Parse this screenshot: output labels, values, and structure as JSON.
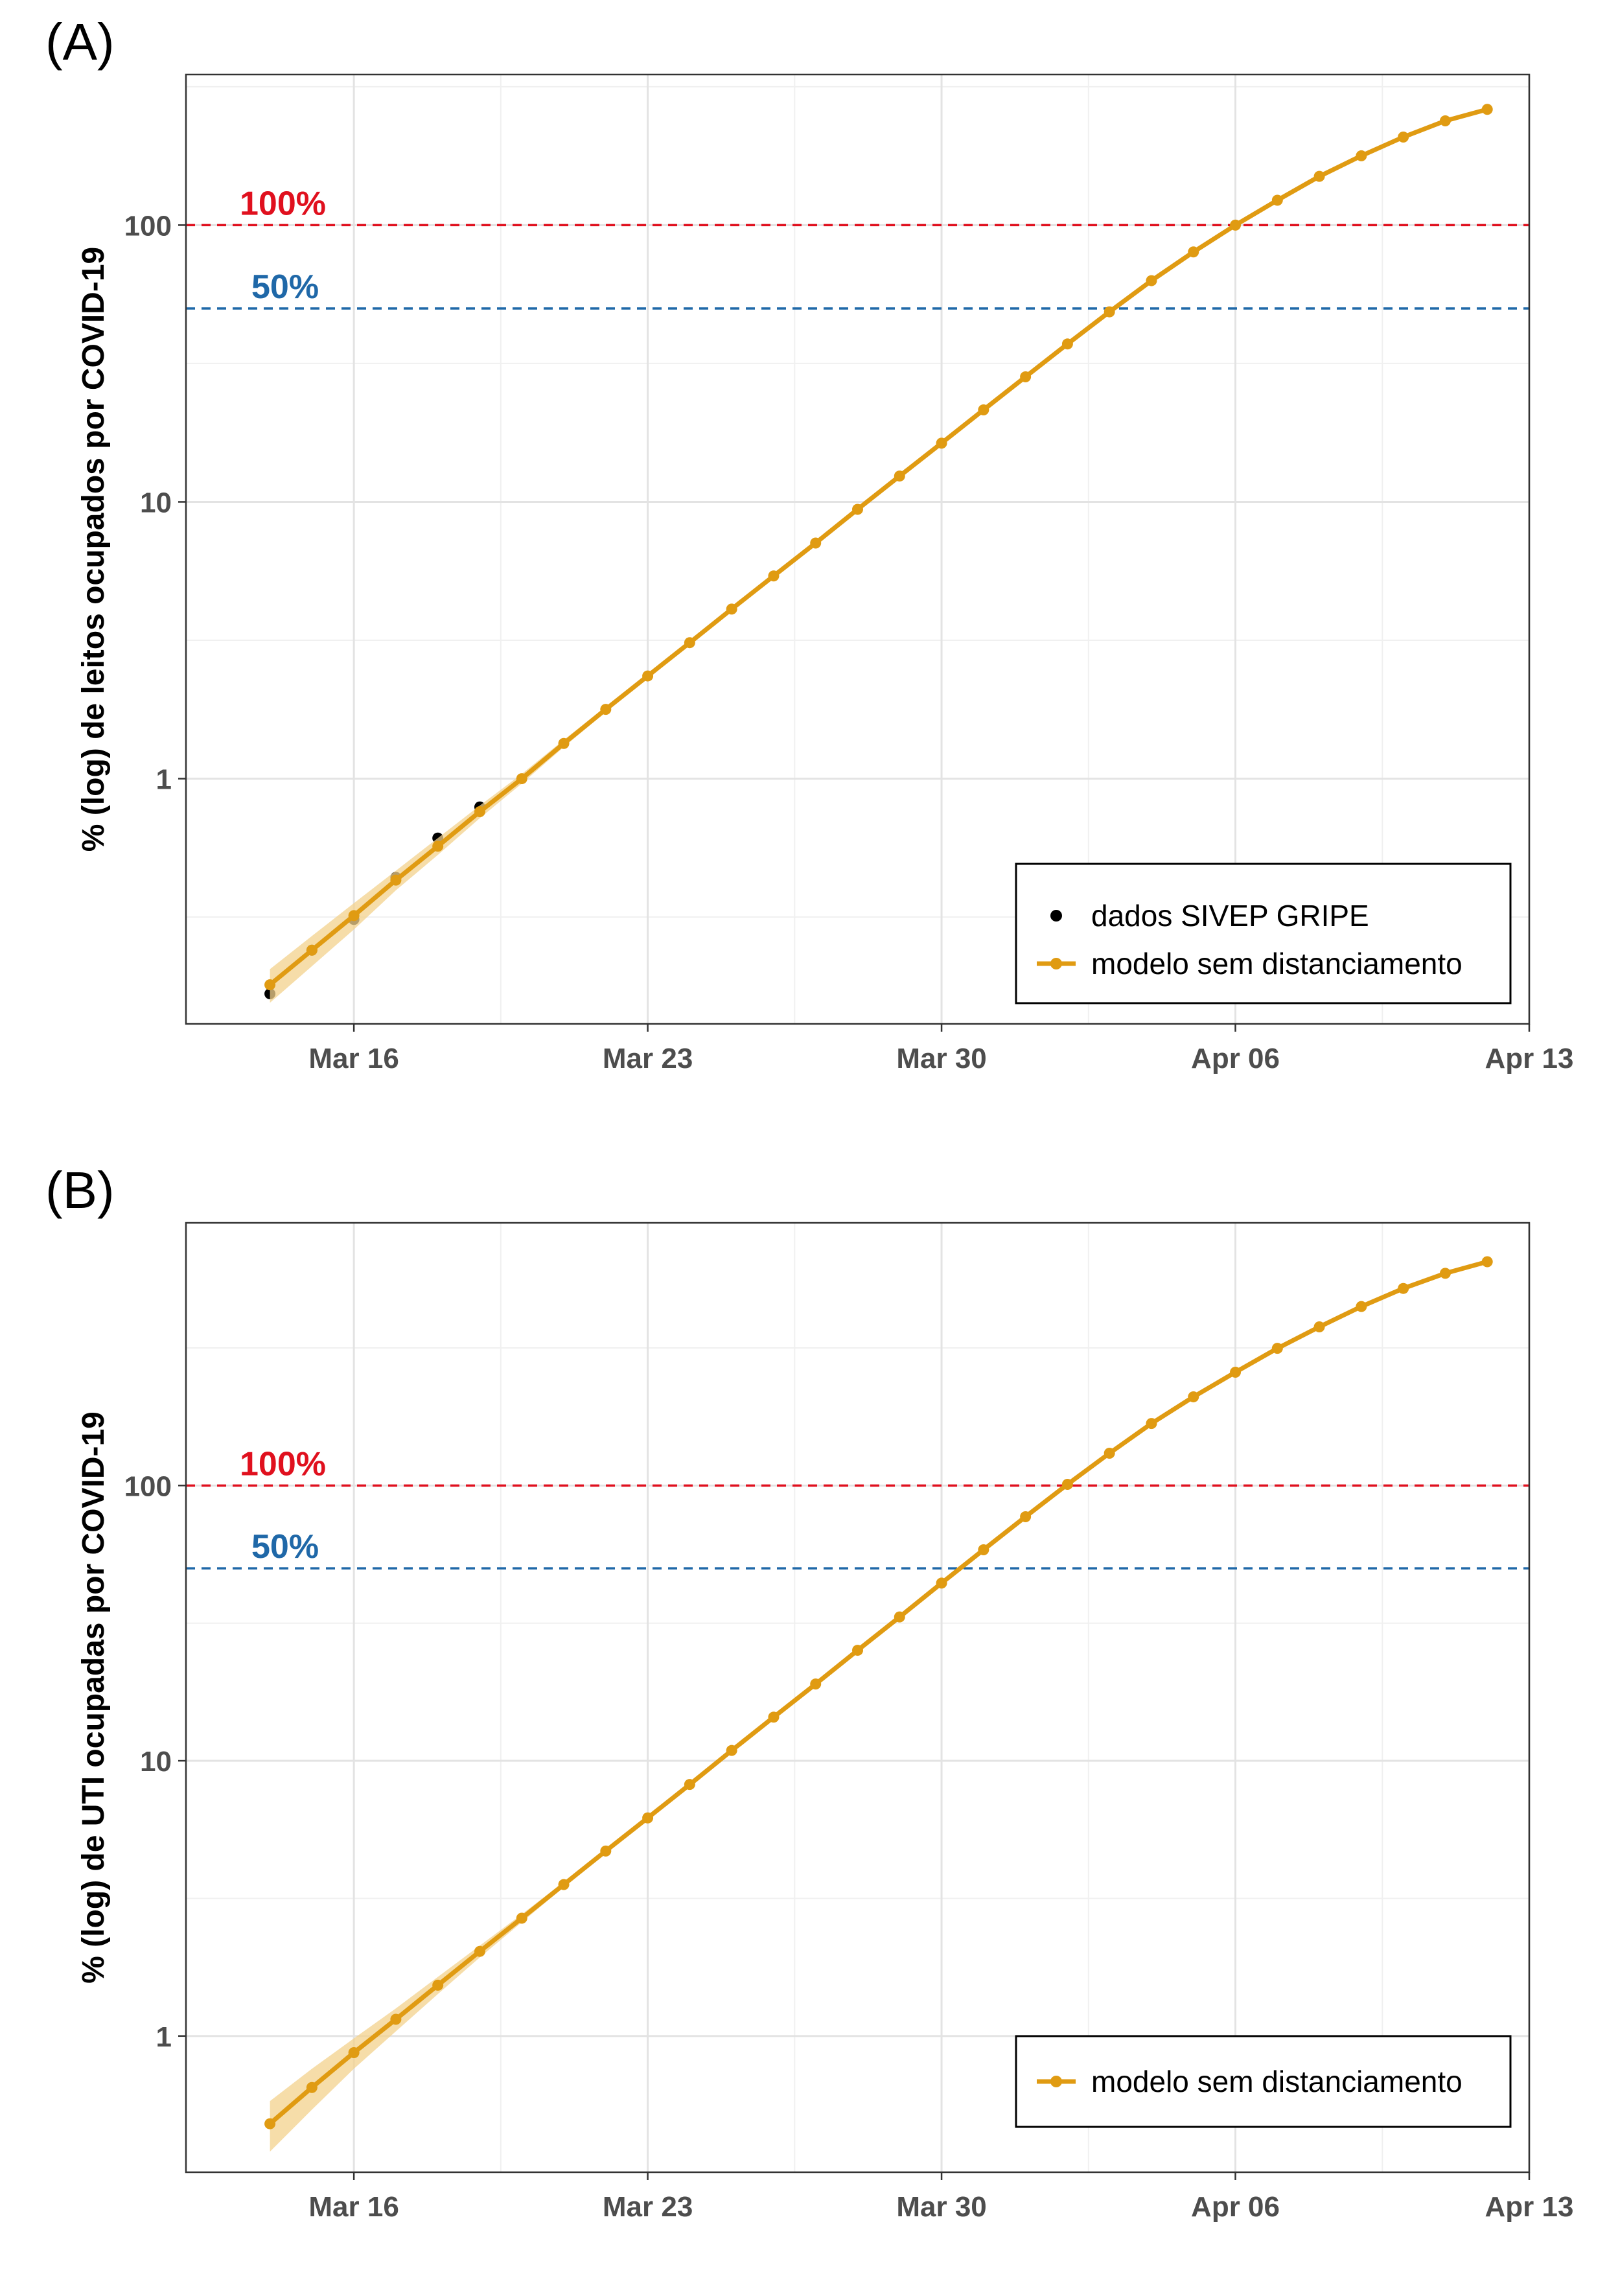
{
  "chart_data": [
    {
      "panel_label": "(A)",
      "type": "line",
      "y_scale": "log",
      "ylabel": "% (log) de leitos ocupados por COVID-19",
      "xlabel": "",
      "xlim": [
        "2020-03-12",
        "2020-04-13"
      ],
      "ylim": [
        0.13,
        350
      ],
      "x_ticks": [
        {
          "date": "2020-03-16",
          "label": "Mar 16"
        },
        {
          "date": "2020-03-23",
          "label": "Mar 23"
        },
        {
          "date": "2020-03-30",
          "label": "Mar 30"
        },
        {
          "date": "2020-04-06",
          "label": "Apr 06"
        },
        {
          "date": "2020-04-13",
          "label": "Apr 13"
        }
      ],
      "y_ticks": [
        {
          "value": 1,
          "label": "1"
        },
        {
          "value": 10,
          "label": "10"
        },
        {
          "value": 100,
          "label": "100"
        }
      ],
      "grid": true,
      "reference_lines": [
        {
          "value": 100,
          "label": "100%",
          "color": "#e0101e"
        },
        {
          "value": 50,
          "label": "50%",
          "color": "#1f68a8"
        }
      ],
      "legend_position": "bottom-right",
      "series": [
        {
          "name": "dados SIVEP GRIPE",
          "kind": "points",
          "color": "#000000",
          "x": [
            "2020-03-14",
            "2020-03-15",
            "2020-03-16",
            "2020-03-17",
            "2020-03-18",
            "2020-03-19"
          ],
          "y": [
            0.167,
            0.24,
            0.31,
            0.44,
            0.61,
            0.79
          ]
        },
        {
          "name": "modelo sem distanciamento",
          "kind": "line_points_band",
          "color": "#e09b12",
          "band_color": "#f3d28c",
          "x": [
            "2020-03-14",
            "2020-03-15",
            "2020-03-16",
            "2020-03-17",
            "2020-03-18",
            "2020-03-19",
            "2020-03-20",
            "2020-03-21",
            "2020-03-22",
            "2020-03-23",
            "2020-03-24",
            "2020-03-25",
            "2020-03-26",
            "2020-03-27",
            "2020-03-28",
            "2020-03-29",
            "2020-03-30",
            "2020-03-31",
            "2020-04-01",
            "2020-04-02",
            "2020-04-03",
            "2020-04-04",
            "2020-04-05",
            "2020-04-06",
            "2020-04-07",
            "2020-04-08",
            "2020-04-09",
            "2020-04-10",
            "2020-04-11",
            "2020-04-12"
          ],
          "y": [
            0.18,
            0.24,
            0.32,
            0.43,
            0.57,
            0.76,
            1.0,
            1.34,
            1.78,
            2.35,
            3.1,
            4.1,
            5.4,
            7.1,
            9.4,
            12.4,
            16.3,
            21.5,
            28.3,
            37.2,
            48.6,
            63.0,
            80.0,
            100,
            123,
            150,
            178,
            208,
            238,
            262
          ],
          "lower": [
            0.155,
            0.21,
            0.285,
            0.395,
            0.53,
            0.72,
            0.96,
            1.3,
            1.74,
            2.31,
            3.07,
            4.07,
            5.37,
            7.07,
            9.37,
            12.4,
            16.3,
            21.5,
            28.3,
            37.2,
            48.6,
            63.0,
            80.0,
            100,
            123,
            150,
            178,
            208,
            238,
            262
          ],
          "upper": [
            0.205,
            0.27,
            0.355,
            0.465,
            0.61,
            0.8,
            1.04,
            1.38,
            1.82,
            2.39,
            3.13,
            4.13,
            5.43,
            7.13,
            9.43,
            12.4,
            16.3,
            21.5,
            28.3,
            37.2,
            48.6,
            63.0,
            80.0,
            100,
            123,
            150,
            178,
            208,
            238,
            262
          ]
        }
      ]
    },
    {
      "panel_label": "(B)",
      "type": "line",
      "y_scale": "log",
      "ylabel": "% (log) de UTI ocupadas por COVID-19",
      "xlabel": "",
      "xlim": [
        "2020-03-12",
        "2020-04-13"
      ],
      "ylim": [
        0.32,
        900
      ],
      "x_ticks": [
        {
          "date": "2020-03-16",
          "label": "Mar 16"
        },
        {
          "date": "2020-03-23",
          "label": "Mar 23"
        },
        {
          "date": "2020-03-30",
          "label": "Mar 30"
        },
        {
          "date": "2020-04-06",
          "label": "Apr 06"
        },
        {
          "date": "2020-04-13",
          "label": "Apr 13"
        }
      ],
      "y_ticks": [
        {
          "value": 1,
          "label": "1"
        },
        {
          "value": 10,
          "label": "10"
        },
        {
          "value": 100,
          "label": "100"
        }
      ],
      "grid": true,
      "reference_lines": [
        {
          "value": 100,
          "label": "100%",
          "color": "#e0101e"
        },
        {
          "value": 50,
          "label": "50%",
          "color": "#1f68a8"
        }
      ],
      "legend_position": "bottom-right",
      "series": [
        {
          "name": "modelo sem distanciamento",
          "kind": "line_points_band",
          "color": "#e09b12",
          "band_color": "#f3d28c",
          "x": [
            "2020-03-14",
            "2020-03-15",
            "2020-03-16",
            "2020-03-17",
            "2020-03-18",
            "2020-03-19",
            "2020-03-20",
            "2020-03-21",
            "2020-03-22",
            "2020-03-23",
            "2020-03-24",
            "2020-03-25",
            "2020-03-26",
            "2020-03-27",
            "2020-03-28",
            "2020-03-29",
            "2020-03-30",
            "2020-03-31",
            "2020-04-01",
            "2020-04-02",
            "2020-04-03",
            "2020-04-04",
            "2020-04-05",
            "2020-04-06",
            "2020-04-07",
            "2020-04-08",
            "2020-04-09",
            "2020-04-10",
            "2020-04-11",
            "2020-04-12"
          ],
          "y": [
            0.48,
            0.65,
            0.87,
            1.15,
            1.53,
            2.03,
            2.68,
            3.55,
            4.7,
            6.2,
            8.2,
            10.9,
            14.4,
            19.0,
            25.2,
            33.3,
            44.2,
            58.4,
            77.0,
            101,
            131,
            168,
            210,
            258,
            315,
            377,
            447,
            520,
            590,
            650
          ],
          "lower": [
            0.38,
            0.54,
            0.76,
            1.04,
            1.42,
            1.93,
            2.59,
            3.47,
            4.62,
            6.14,
            8.15,
            10.85,
            14.4,
            19.0,
            25.2,
            33.3,
            44.2,
            58.4,
            77.0,
            101,
            131,
            168,
            210,
            258,
            315,
            377,
            447,
            520,
            590,
            650
          ],
          "upper": [
            0.58,
            0.76,
            0.98,
            1.26,
            1.64,
            2.13,
            2.77,
            3.63,
            4.78,
            6.26,
            8.25,
            10.95,
            14.4,
            19.0,
            25.2,
            33.3,
            44.2,
            58.4,
            77.0,
            101,
            131,
            168,
            210,
            258,
            315,
            377,
            447,
            520,
            590,
            650
          ]
        }
      ]
    }
  ]
}
